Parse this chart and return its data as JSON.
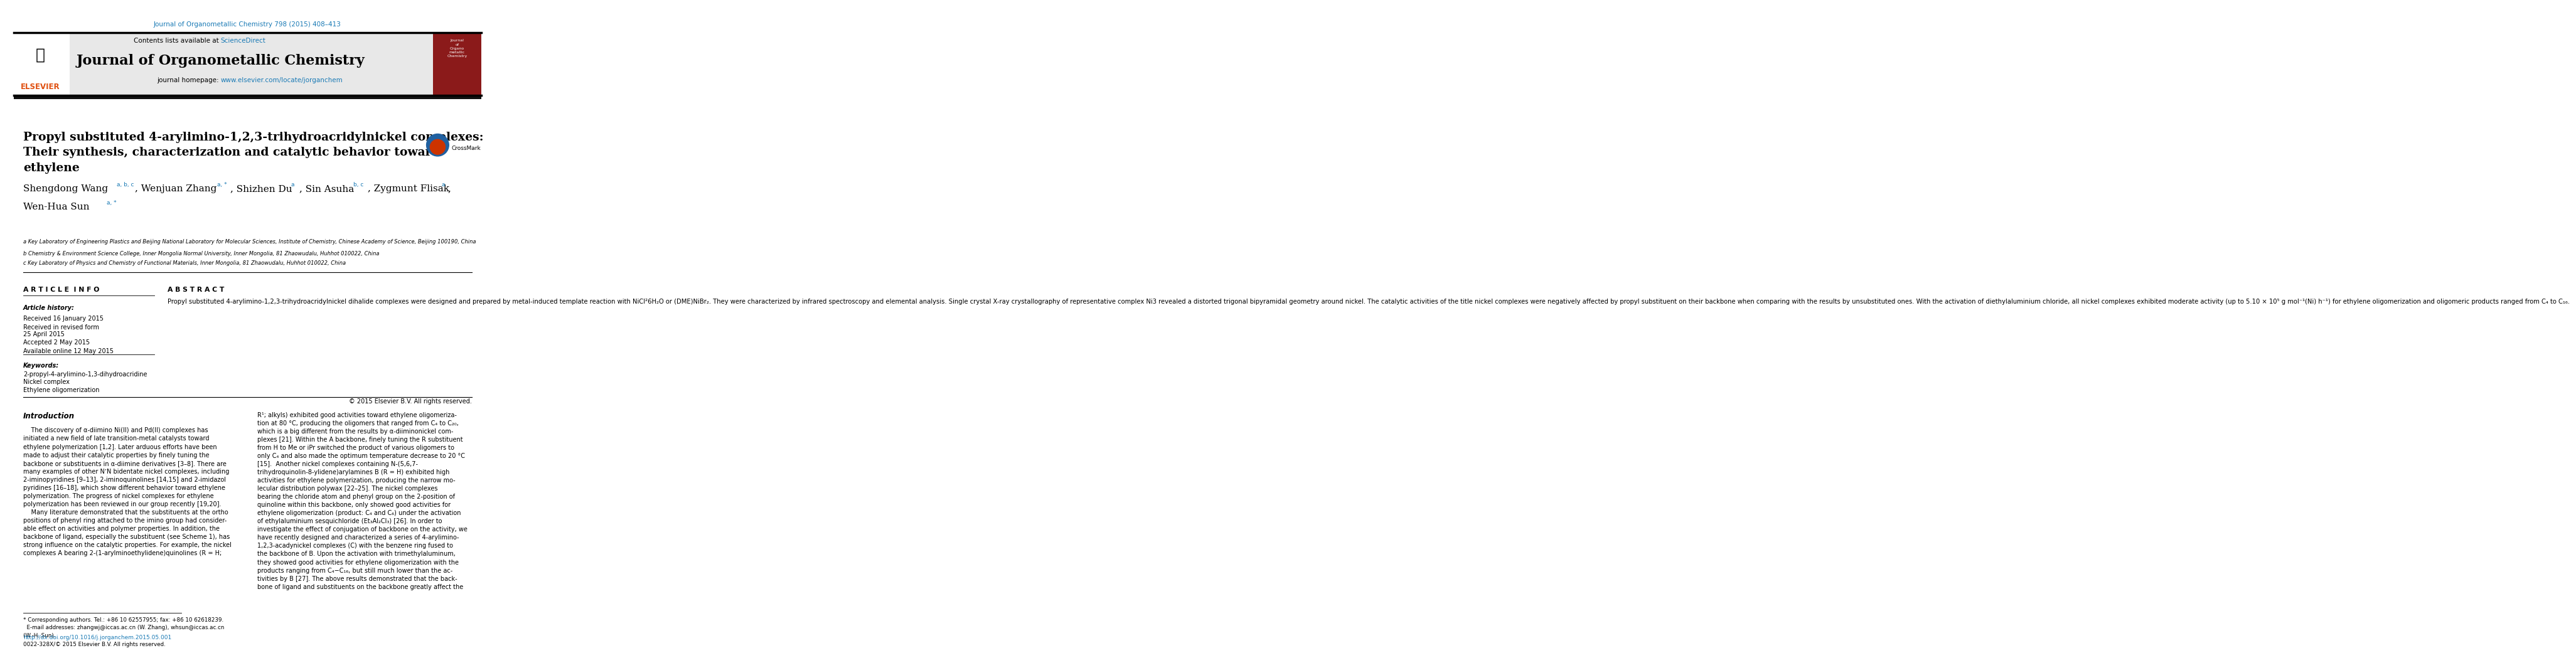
{
  "page_width": 9.92,
  "page_height": 13.23,
  "bg_color": "#ffffff",
  "top_citation": "Journal of Organometallic Chemistry 798 (2015) 408–413",
  "citation_color": "#1a7ab5",
  "journal_name": "Journal of Organometallic Chemistry",
  "contents_text": "Contents lists available at ",
  "science_direct": "ScienceDirect",
  "homepage_text": "journal homepage: ",
  "homepage_url": "www.elsevier.com/locate/jorganchem",
  "url_color": "#1a7ab5",
  "header_bg": "#e8e8e8",
  "article_title": "Propyl substituted 4-arylimino-1,2,3-trihydroacridylnickel complexes:\nTheir synthesis, characterization and catalytic behavior toward\nethylene",
  "affil_a": "a Key Laboratory of Engineering Plastics and Beijing National Laboratory for Molecular Sciences, Institute of Chemistry, Chinese Academy of Science, Beijing 100190, China",
  "affil_b": "b Chemistry & Environment Science College, Inner Mongolia Normal University, Inner Mongolia, 81 Zhaowudalu, Huhhot 010022, China",
  "affil_c": "c Key Laboratory of Physics and Chemistry of Functional Materials, Inner Mongolia, 81 Zhaowudalu, Huhhot 010022, China",
  "article_info_title": "A R T I C L E  I N F O",
  "abstract_title": "A B S T R A C T",
  "article_history": "Article history:",
  "received": "Received 16 January 2015",
  "received_revised": "Received in revised form",
  "revised_date": "25 April 2015",
  "accepted": "Accepted 2 May 2015",
  "available": "Available online 12 May 2015",
  "keywords_title": "Keywords:",
  "kw1": "2-propyl-4-arylimino-1,3-dihydroacridine",
  "kw2": "Nickel complex",
  "kw3": "Ethylene oligomerization",
  "abstract_text": "Propyl substituted 4-arylimino-1,2,3-trihydroacridylnickel dihalide complexes were designed and prepared by metal-induced template reaction with NiCl²6H₂O or (DME)NiBr₂. They were characterized by infrared spectroscopy and elemental analysis. Single crystal X-ray crystallography of representative complex Ni3 revealed a distorted trigonal bipyramidal geometry around nickel. The catalytic activities of the title nickel complexes were negatively affected by propyl substituent on their backbone when comparing with the results by unsubstituted ones. With the activation of diethylaluminium chloride, all nickel complexes exhibited moderate activity (up to 5.10 × 10⁵ g mol⁻¹(Ni) h⁻¹) for ethylene oligomerization and oligomeric products ranged from C₄ to C₁₆.",
  "copyright": "© 2015 Elsevier B.V. All rights reserved.",
  "intro_title": "Introduction",
  "intro_col1": "    The discovery of α-diimino Ni(II) and Pd(II) complexes has\ninitiated a new field of late transition-metal catalysts toward\nethylene polymerization [1,2]. Later arduous efforts have been\nmade to adjust their catalytic properties by finely tuning the\nbackbone or substituents in α-diimine derivatives [3–8]. There are\nmany examples of other NʼN bidentate nickel complexes, including\n2-iminopyridines [9–13], 2-iminoquinolines [14,15] and 2-imidazol\npyridines [16–18], which show different behavior toward ethylene\npolymerization. The progress of nickel complexes for ethylene\npolymerization has been reviewed in our group recently [19,20].\n    Many literature demonstrated that the substituents at the ortho\npositions of phenyl ring attached to the imino group had consider-\nable effect on activities and polymer properties. In addition, the\nbackbone of ligand, especially the substituent (see Scheme 1), has\nstrong influence on the catalytic properties. For example, the nickel\ncomplexes A bearing 2-(1-arylminoethylidene)quinolines (R = H;",
  "intro_col2": "R¹; alkyls) exhibited good activities toward ethylene oligomeriza-\ntion at 80 °C, producing the oligomers that ranged from C₄ to C₂₀,\nwhich is a big different from the results by α-diiminonickel com-\nplexes [21]. Within the A backbone, finely tuning the R substituent\nfrom H to Me or iPr switched the product of various oligomers to\nonly C₄ and also made the optimum temperature decrease to 20 °C\n[15].  Another nickel complexes containing N-(5,6,7-\ntrihydroquinolin-8-ylidene)arylamines B (R = H) exhibited high\nactivities for ethylene polymerization, producing the narrow mo-\nlecular distribution polywax [22–25]. The nickel complexes\nbearing the chloride atom and phenyl group on the 2-position of\nquinoline within this backbone, only showed good activities for\nethylene oligomerization (product: C₄ and C₆) under the activation\nof ethylaluminium sesquichloride (Et₃Al₂Cl₃) [26]. In order to\ninvestigate the effect of conjugation of backbone on the activity, we\nhave recently designed and characterized a series of 4-arylimino-\n1,2,3-acadynickel complexes (C) with the benzene ring fused to\nthe backbone of B. Upon the activation with trimethylaluminum,\nthey showed good activities for ethylene oligomerization with the\nproducts ranging from C₄−C₁₆, but still much lower than the ac-\ntivities by B [27]. The above results demonstrated that the back-\nbone of ligand and substituents on the backbone greatly affect the",
  "footnote_line1": "* Corresponding authors. Tel.: +86 10 62557955; fax: +86 10 62618239.",
  "footnote_line2": "  E-mail addresses: zhangwj@iccas.ac.cn (W. Zhang), whsun@iccas.ac.cn",
  "footnote_line3": "(W.-H. Sun).",
  "doi": "http://dx.doi.org/10.1016/j.jorganchem.2015.05.001",
  "issn": "0022-328X/© 2015 Elsevier B.V. All rights reserved."
}
